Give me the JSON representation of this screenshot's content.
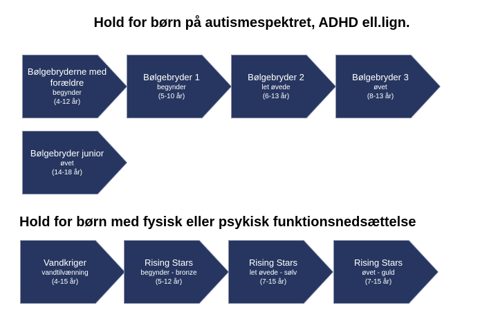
{
  "sections": [
    {
      "title": "Hold for børn på autismespektret, ADHD ell.lign.",
      "items": [
        {
          "name": "Bølgebryderne med forældre",
          "level": "begynder",
          "age": "(4-12 år)"
        },
        {
          "name": "Bølgebryder 1",
          "level": "begynder",
          "age": "(5-10 år)"
        },
        {
          "name": "Bølgebryder 2",
          "level": "let øvede",
          "age": "(6-13 år)"
        },
        {
          "name": "Bølgebryder 3",
          "level": "øvet",
          "age": "(8-13 år)"
        },
        {
          "name": "Bølgebryder junior",
          "level": "øvet",
          "age": "(14-18 år)"
        }
      ]
    },
    {
      "title": "Hold for børn med fysisk eller psykisk funktionsnedsættelse",
      "items": [
        {
          "name": "Vandkriger",
          "level": "vandtilvænning",
          "age": "(4-15 år)"
        },
        {
          "name": "Rising Stars",
          "level": "begynder - bronze",
          "age": "(5-12 år)"
        },
        {
          "name": "Rising Stars",
          "level": "let øvede - sølv",
          "age": "(7-15 år)"
        },
        {
          "name": "Rising Stars",
          "level": "øvet - guld",
          "age": "(7-15 år)"
        }
      ]
    }
  ],
  "colors": {
    "chevron_fill": "#263660",
    "chevron_border": "#8a93ab"
  }
}
